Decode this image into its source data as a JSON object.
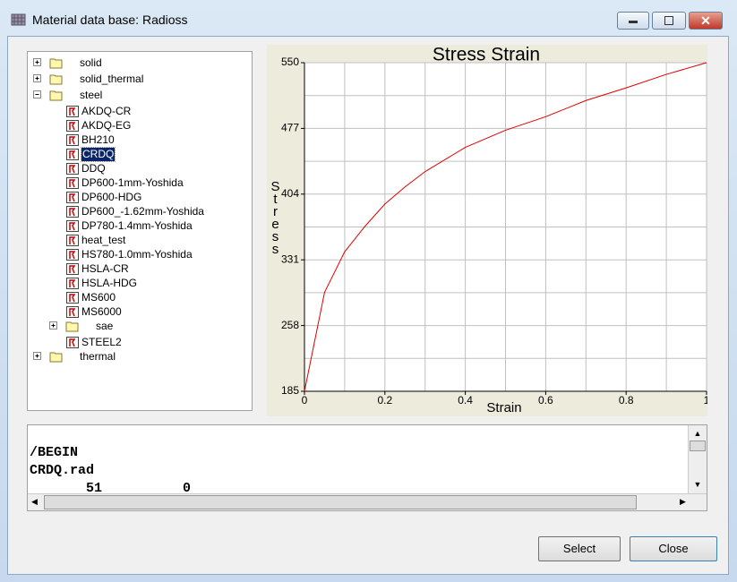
{
  "window": {
    "title": "Material data base: Radioss"
  },
  "tree": {
    "items": [
      {
        "label": "solid",
        "level": 0,
        "folder": true,
        "expanded": false
      },
      {
        "label": "solid_thermal",
        "level": 0,
        "folder": true,
        "expanded": false
      },
      {
        "label": "steel",
        "level": 0,
        "folder": true,
        "expanded": true
      },
      {
        "label": "AKDQ-CR",
        "level": 1,
        "folder": false
      },
      {
        "label": "AKDQ-EG",
        "level": 1,
        "folder": false
      },
      {
        "label": "BH210",
        "level": 1,
        "folder": false
      },
      {
        "label": "CRDQ",
        "level": 1,
        "folder": false,
        "selected": true
      },
      {
        "label": "DDQ",
        "level": 1,
        "folder": false
      },
      {
        "label": "DP600-1mm-Yoshida",
        "level": 1,
        "folder": false
      },
      {
        "label": "DP600-HDG",
        "level": 1,
        "folder": false
      },
      {
        "label": "DP600_-1.62mm-Yoshida",
        "level": 1,
        "folder": false
      },
      {
        "label": "DP780-1.4mm-Yoshida",
        "level": 1,
        "folder": false
      },
      {
        "label": "heat_test",
        "level": 1,
        "folder": false
      },
      {
        "label": "HS780-1.0mm-Yoshida",
        "level": 1,
        "folder": false
      },
      {
        "label": "HSLA-CR",
        "level": 1,
        "folder": false
      },
      {
        "label": "HSLA-HDG",
        "level": 1,
        "folder": false
      },
      {
        "label": "MS600",
        "level": 1,
        "folder": false
      },
      {
        "label": "MS6000",
        "level": 1,
        "folder": false
      },
      {
        "label": "sae",
        "level": 1,
        "folder": true,
        "expanded": false
      },
      {
        "label": "STEEL2",
        "level": 1,
        "folder": false
      },
      {
        "label": "thermal",
        "level": 0,
        "folder": true,
        "expanded": false
      }
    ]
  },
  "chart_data": {
    "type": "line",
    "title": "Stress Strain",
    "x_label": "Strain",
    "y_label": "Stress",
    "x": [
      0,
      0.05,
      0.1,
      0.15,
      0.2,
      0.25,
      0.3,
      0.4,
      0.5,
      0.6,
      0.7,
      0.8,
      0.9,
      1
    ],
    "series": [
      {
        "color": "#e00000",
        "values": [
          185,
          295,
          340,
          368,
          393,
          412,
          429,
          456,
          475,
          490,
          508,
          522,
          537,
          550
        ]
      }
    ],
    "xlim": [
      0,
      1
    ],
    "xticks": [
      0,
      0.2,
      0.4,
      0.6,
      0.8,
      1
    ],
    "ylim": [
      185,
      550
    ],
    "yticks": [
      185,
      258,
      331,
      404,
      477,
      550
    ],
    "xgrid": [
      0,
      0.1,
      0.2,
      0.3,
      0.4,
      0.5,
      0.6,
      0.7,
      0.8,
      0.9,
      1
    ],
    "ygrid": [
      185,
      221.5,
      258,
      294.5,
      331,
      367.5,
      404,
      440.5,
      477,
      513.5,
      550
    ],
    "grid": true
  },
  "text_area": {
    "lines": [
      "/BEGIN",
      "CRDQ.rad",
      "       51          0"
    ]
  },
  "buttons": {
    "select": "Select",
    "close": "Close"
  }
}
